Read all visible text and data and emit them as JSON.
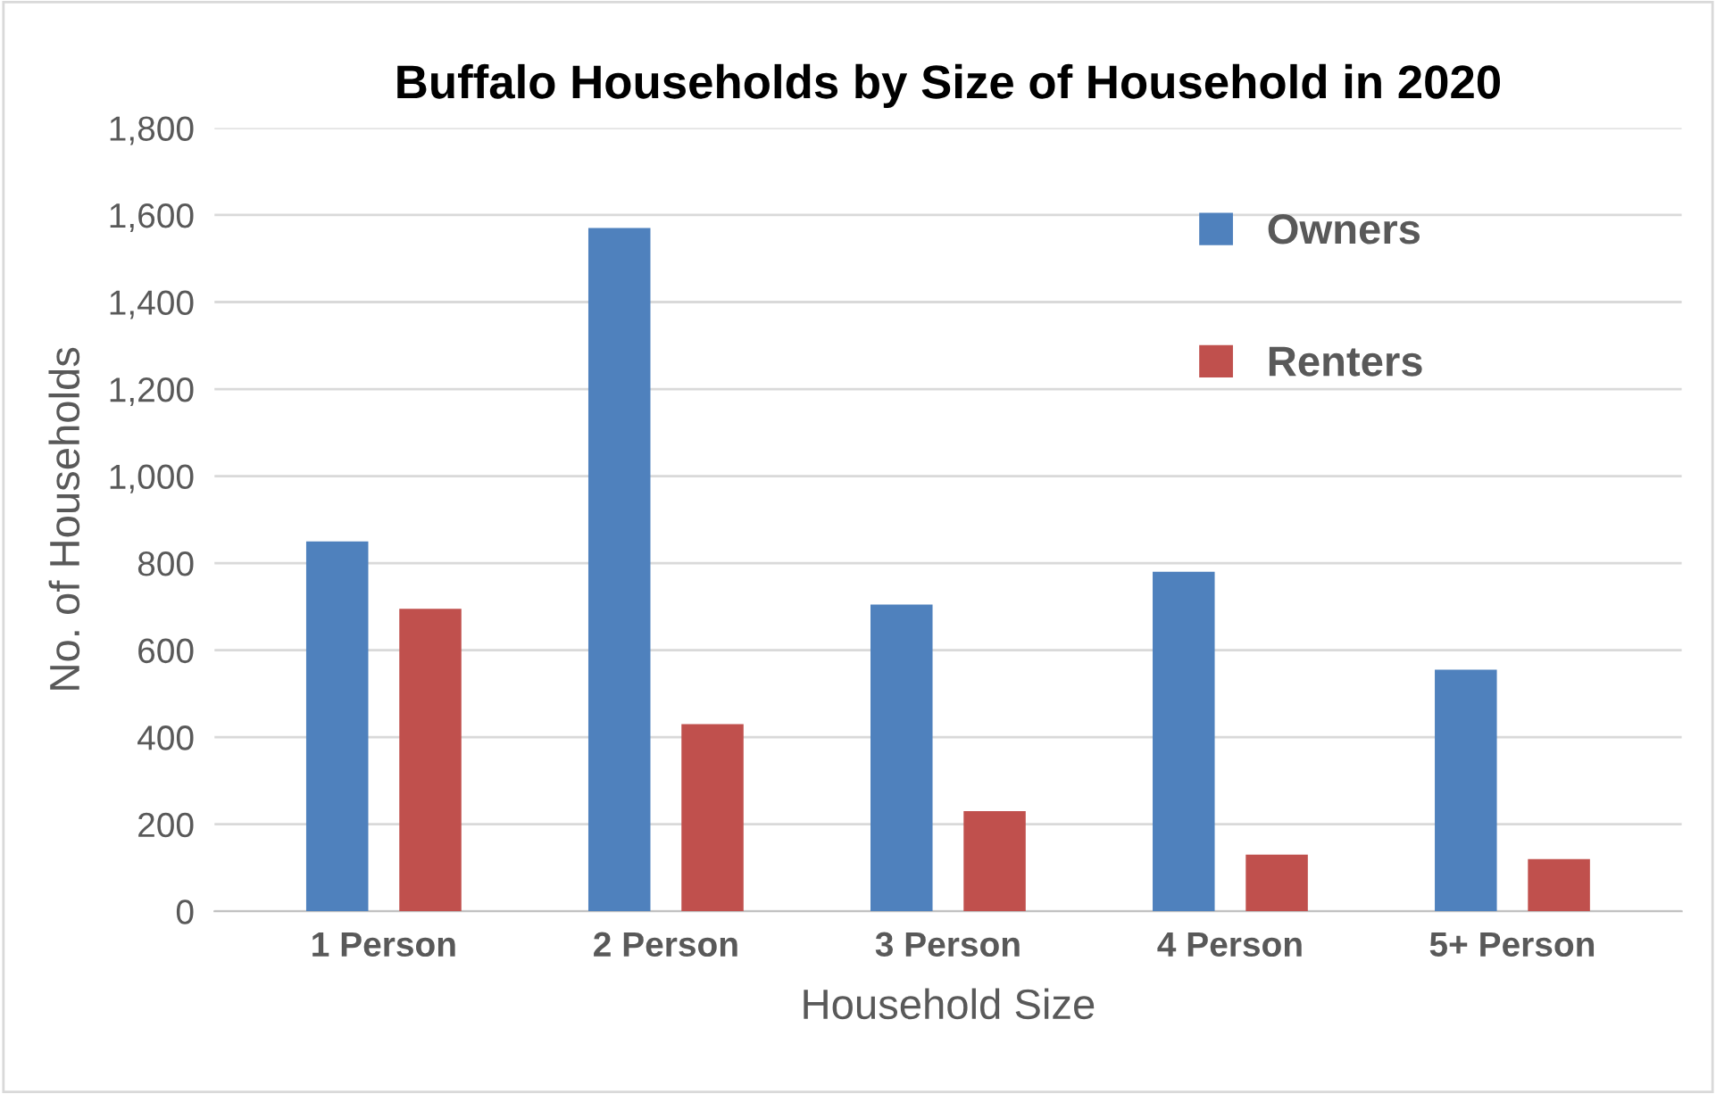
{
  "chart_data": {
    "type": "bar",
    "title": "Buffalo Households by Size of Household in 2020",
    "xlabel": "Household Size",
    "ylabel": "No. of Households",
    "categories": [
      "1 Person",
      "2 Person",
      "3 Person",
      "4 Person",
      "5+ Person"
    ],
    "series": [
      {
        "name": "Owners",
        "color": "#4f81bd",
        "values": [
          850,
          1570,
          705,
          780,
          555
        ]
      },
      {
        "name": "Renters",
        "color": "#c0504d",
        "values": [
          695,
          430,
          230,
          130,
          120
        ]
      }
    ],
    "ylim": [
      0,
      1800
    ],
    "yticks": [
      0,
      {
        "value": 200,
        "label": "200"
      },
      {
        "value": 400,
        "label": "400"
      },
      {
        "value": 600,
        "label": "600"
      },
      {
        "value": 800,
        "label": "800"
      },
      {
        "value": 1000,
        "label": "1,000"
      },
      {
        "value": 1200,
        "label": "1,200"
      },
      {
        "value": 1400,
        "label": "1,400"
      },
      {
        "value": 1600,
        "label": "1,600"
      },
      {
        "value": 1800,
        "label": "1,800"
      }
    ],
    "grid": "y",
    "legend": "top right"
  }
}
